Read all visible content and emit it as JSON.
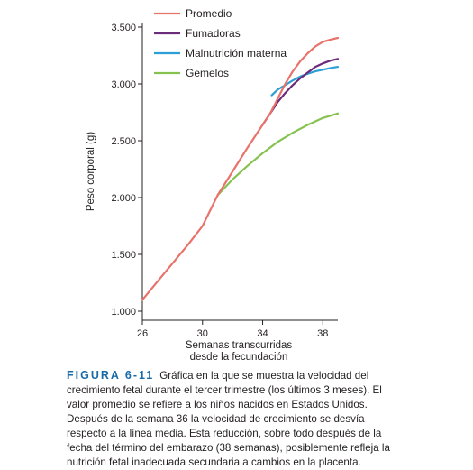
{
  "chart_data": {
    "type": "line",
    "xlabel": [
      "Semanas transcurridas",
      "desde la fecundación"
    ],
    "ylabel": "Peso corporal (g)",
    "xlim": [
      26,
      39
    ],
    "ylim": [
      1000,
      3500
    ],
    "xticks": [
      26,
      30,
      34,
      38
    ],
    "yticks": [
      1000,
      1500,
      2000,
      2500,
      3000,
      3500
    ],
    "ytick_labels": [
      "1.000",
      "1.500",
      "2.000",
      "2.500",
      "3.000",
      "3.500"
    ],
    "grid": false,
    "legend_position": "top",
    "series": [
      {
        "name": "Promedio",
        "color": "#e8736b",
        "x": [
          26,
          27,
          28,
          29,
          30,
          31,
          32,
          33,
          34,
          34.5,
          35,
          35.5,
          36,
          36.5,
          37,
          37.5,
          38,
          38.5,
          39
        ],
        "y": [
          1100,
          1260,
          1420,
          1580,
          1750,
          2020,
          2230,
          2440,
          2640,
          2740,
          2870,
          3000,
          3110,
          3200,
          3270,
          3330,
          3370,
          3390,
          3405
        ]
      },
      {
        "name": "Fumadoras",
        "color": "#6b2c7a",
        "x": [
          34,
          34.5,
          35,
          35.5,
          36,
          36.5,
          37,
          37.5,
          38,
          38.5,
          39
        ],
        "y": [
          2640,
          2740,
          2840,
          2920,
          2990,
          3050,
          3100,
          3150,
          3180,
          3205,
          3220
        ]
      },
      {
        "name": "Malnutrición materna",
        "color": "#2b9fd6",
        "x": [
          34.6,
          35,
          35.5,
          36,
          36.5,
          37,
          37.5,
          38,
          38.5,
          39
        ],
        "y": [
          2900,
          2950,
          2990,
          3030,
          3065,
          3090,
          3110,
          3125,
          3140,
          3150
        ]
      },
      {
        "name": "Gemelos",
        "color": "#86c24f",
        "x": [
          31,
          32,
          33,
          34,
          35,
          36,
          37,
          38,
          39
        ],
        "y": [
          2020,
          2160,
          2280,
          2390,
          2490,
          2570,
          2640,
          2700,
          2740
        ]
      }
    ]
  },
  "caption": {
    "label": "FIGURA 6-11",
    "text": "Gráfica en la que se muestra la velocidad del crecimiento fetal durante el tercer trimestre (los últimos 3 meses). El valor promedio se refiere a los niños nacidos en Estados Unidos. Después de la semana 36 la velocidad de crecimiento se desvía respecto a la línea media. Esta reducción, sobre todo después de la fecha del término del embarazo (38 semanas), posiblemente refleja la nutrición fetal inadecuada secundaria a cambios en la placenta."
  }
}
